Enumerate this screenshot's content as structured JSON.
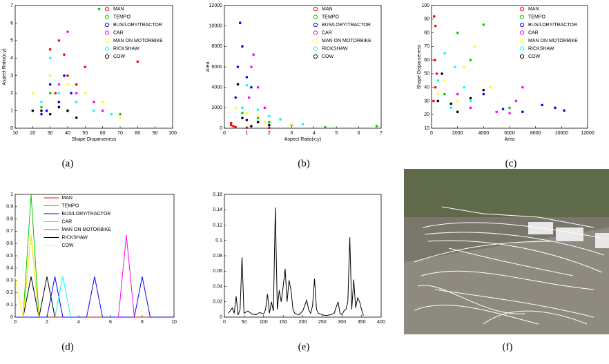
{
  "chart_data": [
    {
      "type": "scatter",
      "caption": "(a)",
      "xlabel": "Shape Disparseness",
      "ylabel": "Aspect Ratio(x:y)",
      "xlim": [
        10,
        100
      ],
      "ylim": [
        0,
        7
      ],
      "xticks": [
        10,
        20,
        30,
        40,
        50,
        60,
        70,
        80,
        90,
        100
      ],
      "yticks": [
        0,
        1,
        2,
        3,
        4,
        5,
        6,
        7
      ],
      "legend": "upper right",
      "series": [
        {
          "name": "MAN",
          "color": "#ff0000",
          "x": [
            30,
            35,
            38,
            40,
            45,
            33,
            50,
            80
          ],
          "values": [
            4.5,
            5,
            4.2,
            3,
            2.5,
            2,
            3.5,
            3.8
          ]
        },
        {
          "name": "TEMPO",
          "color": "#00cc00",
          "x": [
            58,
            30,
            45,
            40,
            70,
            25
          ],
          "values": [
            6.8,
            2,
            1.5,
            1,
            0.8,
            1.2
          ]
        },
        {
          "name": "BUS/LORY/TRACTOR",
          "color": "#0000ff",
          "x": [
            28,
            35,
            42,
            30,
            25,
            38
          ],
          "values": [
            1,
            1.5,
            2,
            2.5,
            0.8,
            3
          ]
        },
        {
          "name": "CAR",
          "color": "#ff00ff",
          "x": [
            35,
            45,
            55,
            60,
            30,
            40
          ],
          "values": [
            2.5,
            2,
            1.5,
            1,
            3,
            5.5
          ]
        },
        {
          "name": "MAN ON MOTORBIKE",
          "color": "#ffff00",
          "x": [
            30,
            40,
            50,
            60,
            70,
            20
          ],
          "values": [
            3,
            2.5,
            2,
            1.5,
            0.6,
            2
          ]
        },
        {
          "name": "RICKSHAW",
          "color": "#00ffff",
          "x": [
            25,
            35,
            45,
            55,
            65,
            30
          ],
          "values": [
            1.5,
            2,
            1.5,
            1,
            0.8,
            4
          ]
        },
        {
          "name": "COW",
          "color": "#000000",
          "x": [
            25,
            30,
            35,
            40,
            45,
            20
          ],
          "values": [
            1,
            0.8,
            1.2,
            1,
            0.6,
            1
          ]
        }
      ]
    },
    {
      "type": "scatter",
      "caption": "(b)",
      "xlabel": "Aspect Ratio(x:y)",
      "ylabel": "Area",
      "xlim": [
        0,
        7
      ],
      "ylim": [
        0,
        12000
      ],
      "xticks": [
        0,
        1,
        2,
        3,
        4,
        5,
        6,
        7
      ],
      "yticks": [
        0,
        2000,
        4000,
        6000,
        8000,
        10000,
        12000
      ],
      "legend": "upper right",
      "series": [
        {
          "name": "MAN",
          "color": "#ff0000",
          "x": [
            0.3,
            0.4,
            0.5,
            0.3,
            1,
            2
          ],
          "values": [
            300,
            200,
            100,
            500,
            50,
            30
          ]
        },
        {
          "name": "TEMPO",
          "color": "#00cc00",
          "x": [
            0.8,
            1.5,
            2,
            3,
            4.5,
            6.8
          ],
          "values": [
            1500,
            1000,
            600,
            300,
            100,
            200
          ]
        },
        {
          "name": "BUS/LORY/TRACTOR",
          "color": "#0000ff",
          "x": [
            0.7,
            0.8,
            0.6,
            1,
            1.2,
            0.5
          ],
          "values": [
            10300,
            8000,
            6000,
            5000,
            4000,
            3000
          ]
        },
        {
          "name": "CAR",
          "color": "#ff00ff",
          "x": [
            1.3,
            1.2,
            1.5,
            1.8,
            1.1,
            2.5
          ],
          "values": [
            7200,
            6000,
            4000,
            2000,
            3000,
            800
          ]
        },
        {
          "name": "MAN ON MOTORBIKE",
          "color": "#ffff00",
          "x": [
            0.5,
            1,
            1.5,
            2.5,
            3,
            1.8
          ],
          "values": [
            2000,
            1500,
            1200,
            800,
            400,
            600
          ]
        },
        {
          "name": "RICKSHAW",
          "color": "#00ffff",
          "x": [
            0.8,
            1.5,
            2,
            2.5,
            3.5,
            1
          ],
          "values": [
            2000,
            1800,
            1200,
            900,
            400,
            4200
          ]
        },
        {
          "name": "COW",
          "color": "#000000",
          "x": [
            1,
            1.5,
            2,
            0.6,
            1.2,
            0.8
          ],
          "values": [
            800,
            600,
            300,
            4300,
            200,
            1000
          ]
        }
      ]
    },
    {
      "type": "scatter",
      "caption": "(c)",
      "xlabel": "Area",
      "ylabel": "Shape Disparseness",
      "xlim": [
        0,
        12000
      ],
      "ylim": [
        10,
        100
      ],
      "xticks": [
        0,
        2000,
        4000,
        6000,
        8000,
        10000,
        12000
      ],
      "yticks": [
        10,
        20,
        30,
        40,
        50,
        60,
        70,
        80,
        90,
        100
      ],
      "legend": "upper right",
      "series": [
        {
          "name": "MAN",
          "color": "#ff0000",
          "x": [
            200,
            300,
            250,
            400,
            300,
            150
          ],
          "values": [
            92,
            85,
            60,
            50,
            40,
            30
          ]
        },
        {
          "name": "TEMPO",
          "color": "#00cc00",
          "x": [
            2000,
            4000,
            3000,
            500,
            1000,
            6000
          ],
          "values": [
            80,
            86,
            60,
            45,
            35,
            25
          ]
        },
        {
          "name": "BUS/LORY/TRACTOR",
          "color": "#0000ff",
          "x": [
            8500,
            9500,
            10200,
            7000,
            5500,
            4000
          ],
          "values": [
            27,
            25,
            23,
            22,
            24,
            35
          ]
        },
        {
          "name": "CAR",
          "color": "#ff00ff",
          "x": [
            7000,
            6500,
            5000,
            3000,
            2000,
            6000
          ],
          "values": [
            40,
            30,
            22,
            25,
            35,
            21
          ]
        },
        {
          "name": "MAN ON MOTORBIKE",
          "color": "#ffff00",
          "x": [
            3300,
            2500,
            1000,
            4500,
            2000,
            500
          ],
          "values": [
            70,
            55,
            45,
            40,
            30,
            35
          ]
        },
        {
          "name": "RICKSHAW",
          "color": "#00ffff",
          "x": [
            1000,
            1800,
            2500,
            500,
            3000,
            1500
          ],
          "values": [
            65,
            55,
            40,
            45,
            30,
            25
          ]
        },
        {
          "name": "COW",
          "color": "#000000",
          "x": [
            500,
            1500,
            3000,
            4000,
            800,
            2000
          ],
          "values": [
            30,
            28,
            32,
            38,
            50,
            22
          ]
        }
      ]
    },
    {
      "type": "line",
      "caption": "(d)",
      "xlim": [
        0,
        10
      ],
      "ylim": [
        0,
        1
      ],
      "xticks": [
        0,
        2,
        4,
        6,
        8,
        10
      ],
      "yticks": [
        0,
        0.1,
        0.2,
        0.3,
        0.4,
        0.5,
        0.6,
        0.7,
        0.8,
        0.9,
        1
      ],
      "legend": "upper center",
      "series": [
        {
          "name": "MAN",
          "color": "#ff0000",
          "x": [
            0,
            0.5,
            1,
            1.5,
            10
          ],
          "values": [
            0,
            0,
            0.67,
            0,
            0
          ]
        },
        {
          "name": "TEMPO",
          "color": "#00cc00",
          "x": [
            0.5,
            1,
            1.5
          ],
          "values": [
            0,
            1,
            0
          ]
        },
        {
          "name": "BUS/LORY/TRACTOR",
          "color": "#0000ff",
          "x": [
            0,
            2,
            2.5,
            3,
            4.5,
            5,
            5.5,
            7.5,
            8,
            8.5,
            10
          ],
          "values": [
            0,
            0,
            0.33,
            0,
            0,
            0.33,
            0,
            0,
            0.33,
            0,
            0
          ]
        },
        {
          "name": "CAR",
          "color": "#00ffff",
          "x": [
            2.5,
            3,
            3.5
          ],
          "values": [
            0,
            0.33,
            0
          ]
        },
        {
          "name": "MAN ON MOTORBIKE",
          "color": "#ff00ff",
          "x": [
            6.5,
            7,
            7.5
          ],
          "values": [
            0,
            0.67,
            0
          ]
        },
        {
          "name": "RICKSHAW",
          "color": "#000000",
          "x": [
            0.5,
            1,
            1.5,
            2,
            2.5
          ],
          "values": [
            0,
            0.33,
            0,
            0.33,
            0
          ]
        },
        {
          "name": "COW",
          "color": "#ffff00",
          "x": [
            0,
            0.5,
            1,
            1.5
          ],
          "values": [
            0.33,
            0,
            0.67,
            0
          ]
        }
      ]
    },
    {
      "type": "line",
      "caption": "(e)",
      "color": "#000000",
      "xlim": [
        0,
        400
      ],
      "ylim": [
        0,
        0.16
      ],
      "xticks": [
        0,
        50,
        100,
        150,
        200,
        250,
        300,
        350,
        400
      ],
      "yticks": [
        0,
        0.02,
        0.04,
        0.06,
        0.08,
        0.1,
        0.12,
        0.14,
        0.16
      ],
      "x": [
        10,
        20,
        25,
        30,
        35,
        40,
        45,
        50,
        60,
        70,
        80,
        90,
        100,
        105,
        110,
        115,
        120,
        125,
        130,
        135,
        140,
        145,
        150,
        155,
        160,
        165,
        170,
        175,
        180,
        190,
        200,
        210,
        215,
        220,
        225,
        230,
        235,
        240,
        250,
        260,
        270,
        280,
        290,
        295,
        300,
        305,
        310,
        315,
        320,
        325,
        330,
        335,
        340,
        345,
        350,
        355
      ],
      "values": [
        0.005,
        0.012,
        0.005,
        0.027,
        0.003,
        0.01,
        0.078,
        0.005,
        0.008,
        0.004,
        0.003,
        0.006,
        0.004,
        0.01,
        0.03,
        0.005,
        0.02,
        0.008,
        0.143,
        0.01,
        0.035,
        0.02,
        0.04,
        0.063,
        0.02,
        0.048,
        0.035,
        0.01,
        0.005,
        0.003,
        0.008,
        0.022,
        0.01,
        0.005,
        0.015,
        0.05,
        0.01,
        0.005,
        0.003,
        0.002,
        0.003,
        0.005,
        0.02,
        0.005,
        0.003,
        0.008,
        0.01,
        0.02,
        0.104,
        0.01,
        0.049,
        0.012,
        0.025,
        0.02,
        0.01,
        0.002
      ]
    }
  ],
  "photo": {
    "caption": "(f)"
  }
}
